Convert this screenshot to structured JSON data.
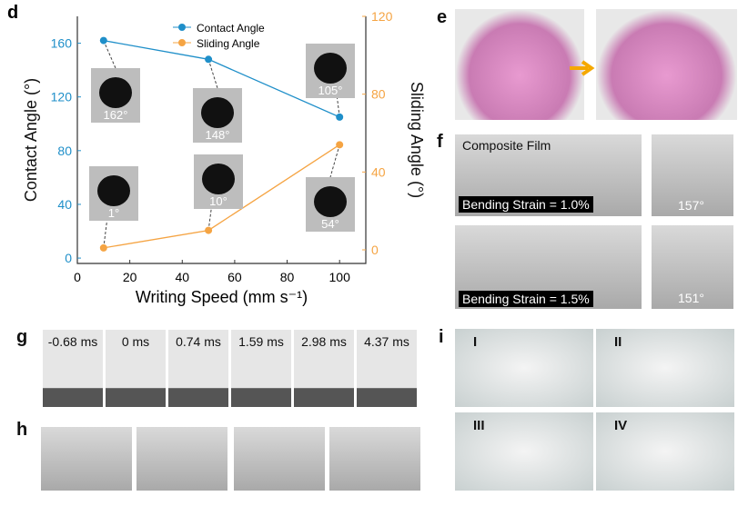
{
  "chart_data": {
    "type": "line",
    "legend": "upper center",
    "x": [
      10,
      50,
      100
    ],
    "xlim": [
      0,
      110
    ],
    "xticks": [
      0,
      20,
      40,
      60,
      80,
      100
    ],
    "ylim": [
      -4,
      180
    ],
    "yticks": [
      0,
      40,
      80,
      120,
      160
    ],
    "y2lim": [
      -7,
      120
    ],
    "y2ticks": [
      0,
      40,
      80,
      120
    ],
    "xlabel": "Writing Speed (mm s⁻¹)",
    "ylabel": "Contact Angle (°)",
    "y2label": "Sliding Angle (°)",
    "series": [
      {
        "name": "Contact Angle",
        "color": "#1f8fc9",
        "values": [
          162,
          148,
          105
        ],
        "value_labels": [
          "162°",
          "148°",
          "105°"
        ]
      },
      {
        "name": "Sliding Angle",
        "color": "#f5a443",
        "axis": "y2",
        "values": [
          1,
          10,
          54
        ],
        "value_labels": [
          "1°",
          "10°",
          "54°"
        ]
      }
    ]
  },
  "panel_labels": [
    "d",
    "e",
    "f",
    "g",
    "h",
    "i"
  ],
  "f": {
    "annotation": "Composite Film",
    "strains": [
      "Bending Strain = 1.0%",
      "Bending Strain = 1.5%"
    ],
    "angles": [
      "157°",
      "151°"
    ]
  },
  "g": {
    "times": [
      "-0.68 ms",
      "0 ms",
      "0.74 ms",
      "1.59 ms",
      "2.98 ms",
      "4.37 ms"
    ]
  },
  "i": {
    "labels": [
      "I",
      "II",
      "III",
      "IV"
    ]
  }
}
